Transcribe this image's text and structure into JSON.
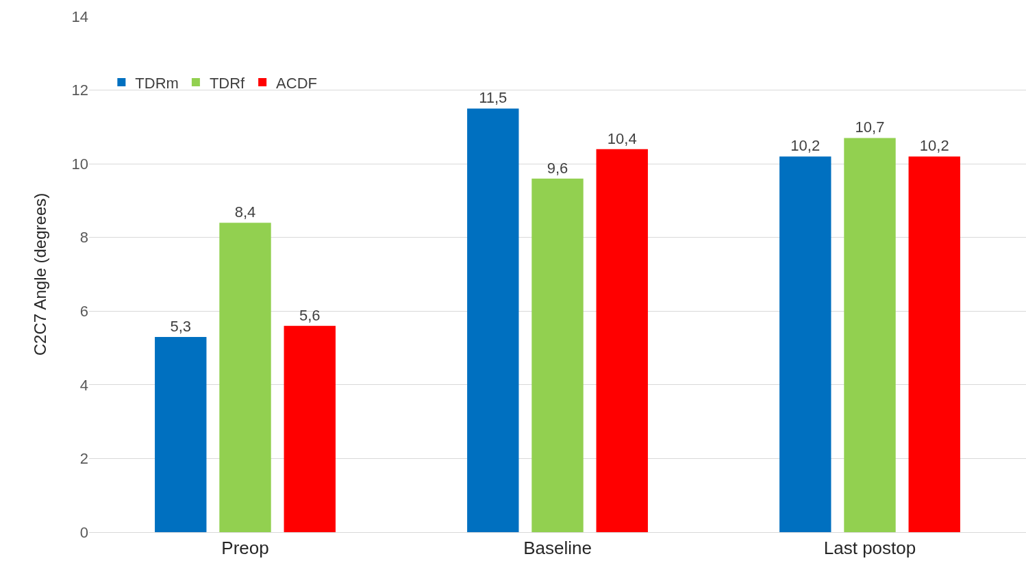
{
  "chart_data": {
    "type": "bar",
    "ylabel": "C2C7 Angle (degrees)",
    "categories": [
      "Preop",
      "Baseline",
      "Last postop"
    ],
    "series": [
      {
        "name": "TDRm",
        "color": "#0070c0",
        "values": [
          5.3,
          11.5,
          10.2
        ],
        "value_labels": [
          "5,3",
          "11,5",
          "10,2"
        ]
      },
      {
        "name": "TDRf",
        "color": "#92d050",
        "values": [
          8.4,
          9.6,
          10.7
        ],
        "value_labels": [
          "8,4",
          "9,6",
          "10,7"
        ]
      },
      {
        "name": "ACDF",
        "color": "#ff0000",
        "values": [
          5.6,
          10.4,
          10.2
        ],
        "value_labels": [
          "5,6",
          "10,4",
          "10,2"
        ]
      }
    ],
    "ylim": [
      0,
      14
    ],
    "yticks": [
      0,
      2,
      4,
      6,
      8,
      10,
      12,
      14
    ],
    "grid": "y",
    "legend": "top left"
  }
}
